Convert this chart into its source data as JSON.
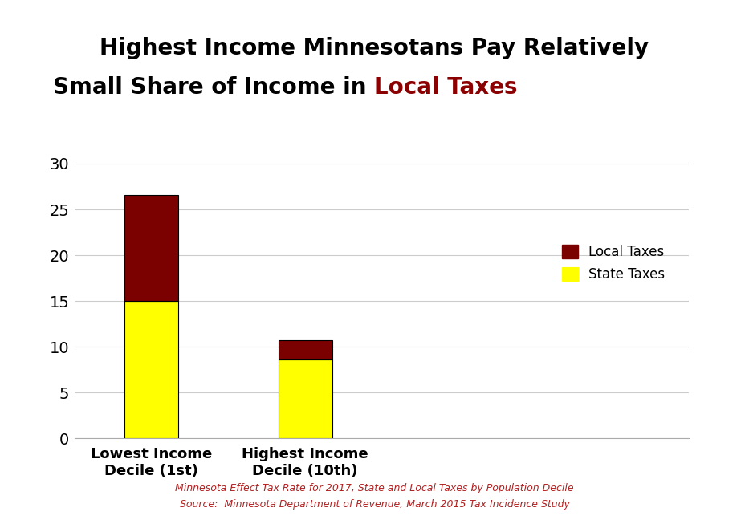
{
  "categories": [
    "Lowest Income\nDecile (1st)",
    "Highest Income\nDecile (10th)"
  ],
  "state_taxes": [
    15.0,
    8.6
  ],
  "local_taxes": [
    11.6,
    2.1
  ],
  "bar_width": 0.35,
  "state_color": "#FFFF00",
  "local_color": "#7B0000",
  "ylim": [
    0,
    30
  ],
  "yticks": [
    0,
    5,
    10,
    15,
    20,
    25,
    30
  ],
  "title_line1": "Highest Income Minnesotans Pay Relatively",
  "title_line2_black": "Small Share of Income in ",
  "title_line2_red": "Local Taxes",
  "title_color_black": "#000000",
  "title_color_red": "#8B0000",
  "legend_local": "Local Taxes",
  "legend_state": "State Taxes",
  "footnote_color": "#B22222",
  "footnote1": "Minnesota Effect Tax Rate for 2017, State and Local Taxes by Population Decile",
  "footnote2": "Source:  Minnesota Department of Revenue, March 2015 Tax Incidence Study",
  "background_color": "#FFFFFF",
  "grid_color": "#CCCCCC",
  "bar_edge_color": "#000000",
  "bar_positions": [
    1,
    2
  ],
  "xlim": [
    0.5,
    4.5
  ],
  "figsize": [
    9.33,
    6.58
  ],
  "dpi": 100
}
